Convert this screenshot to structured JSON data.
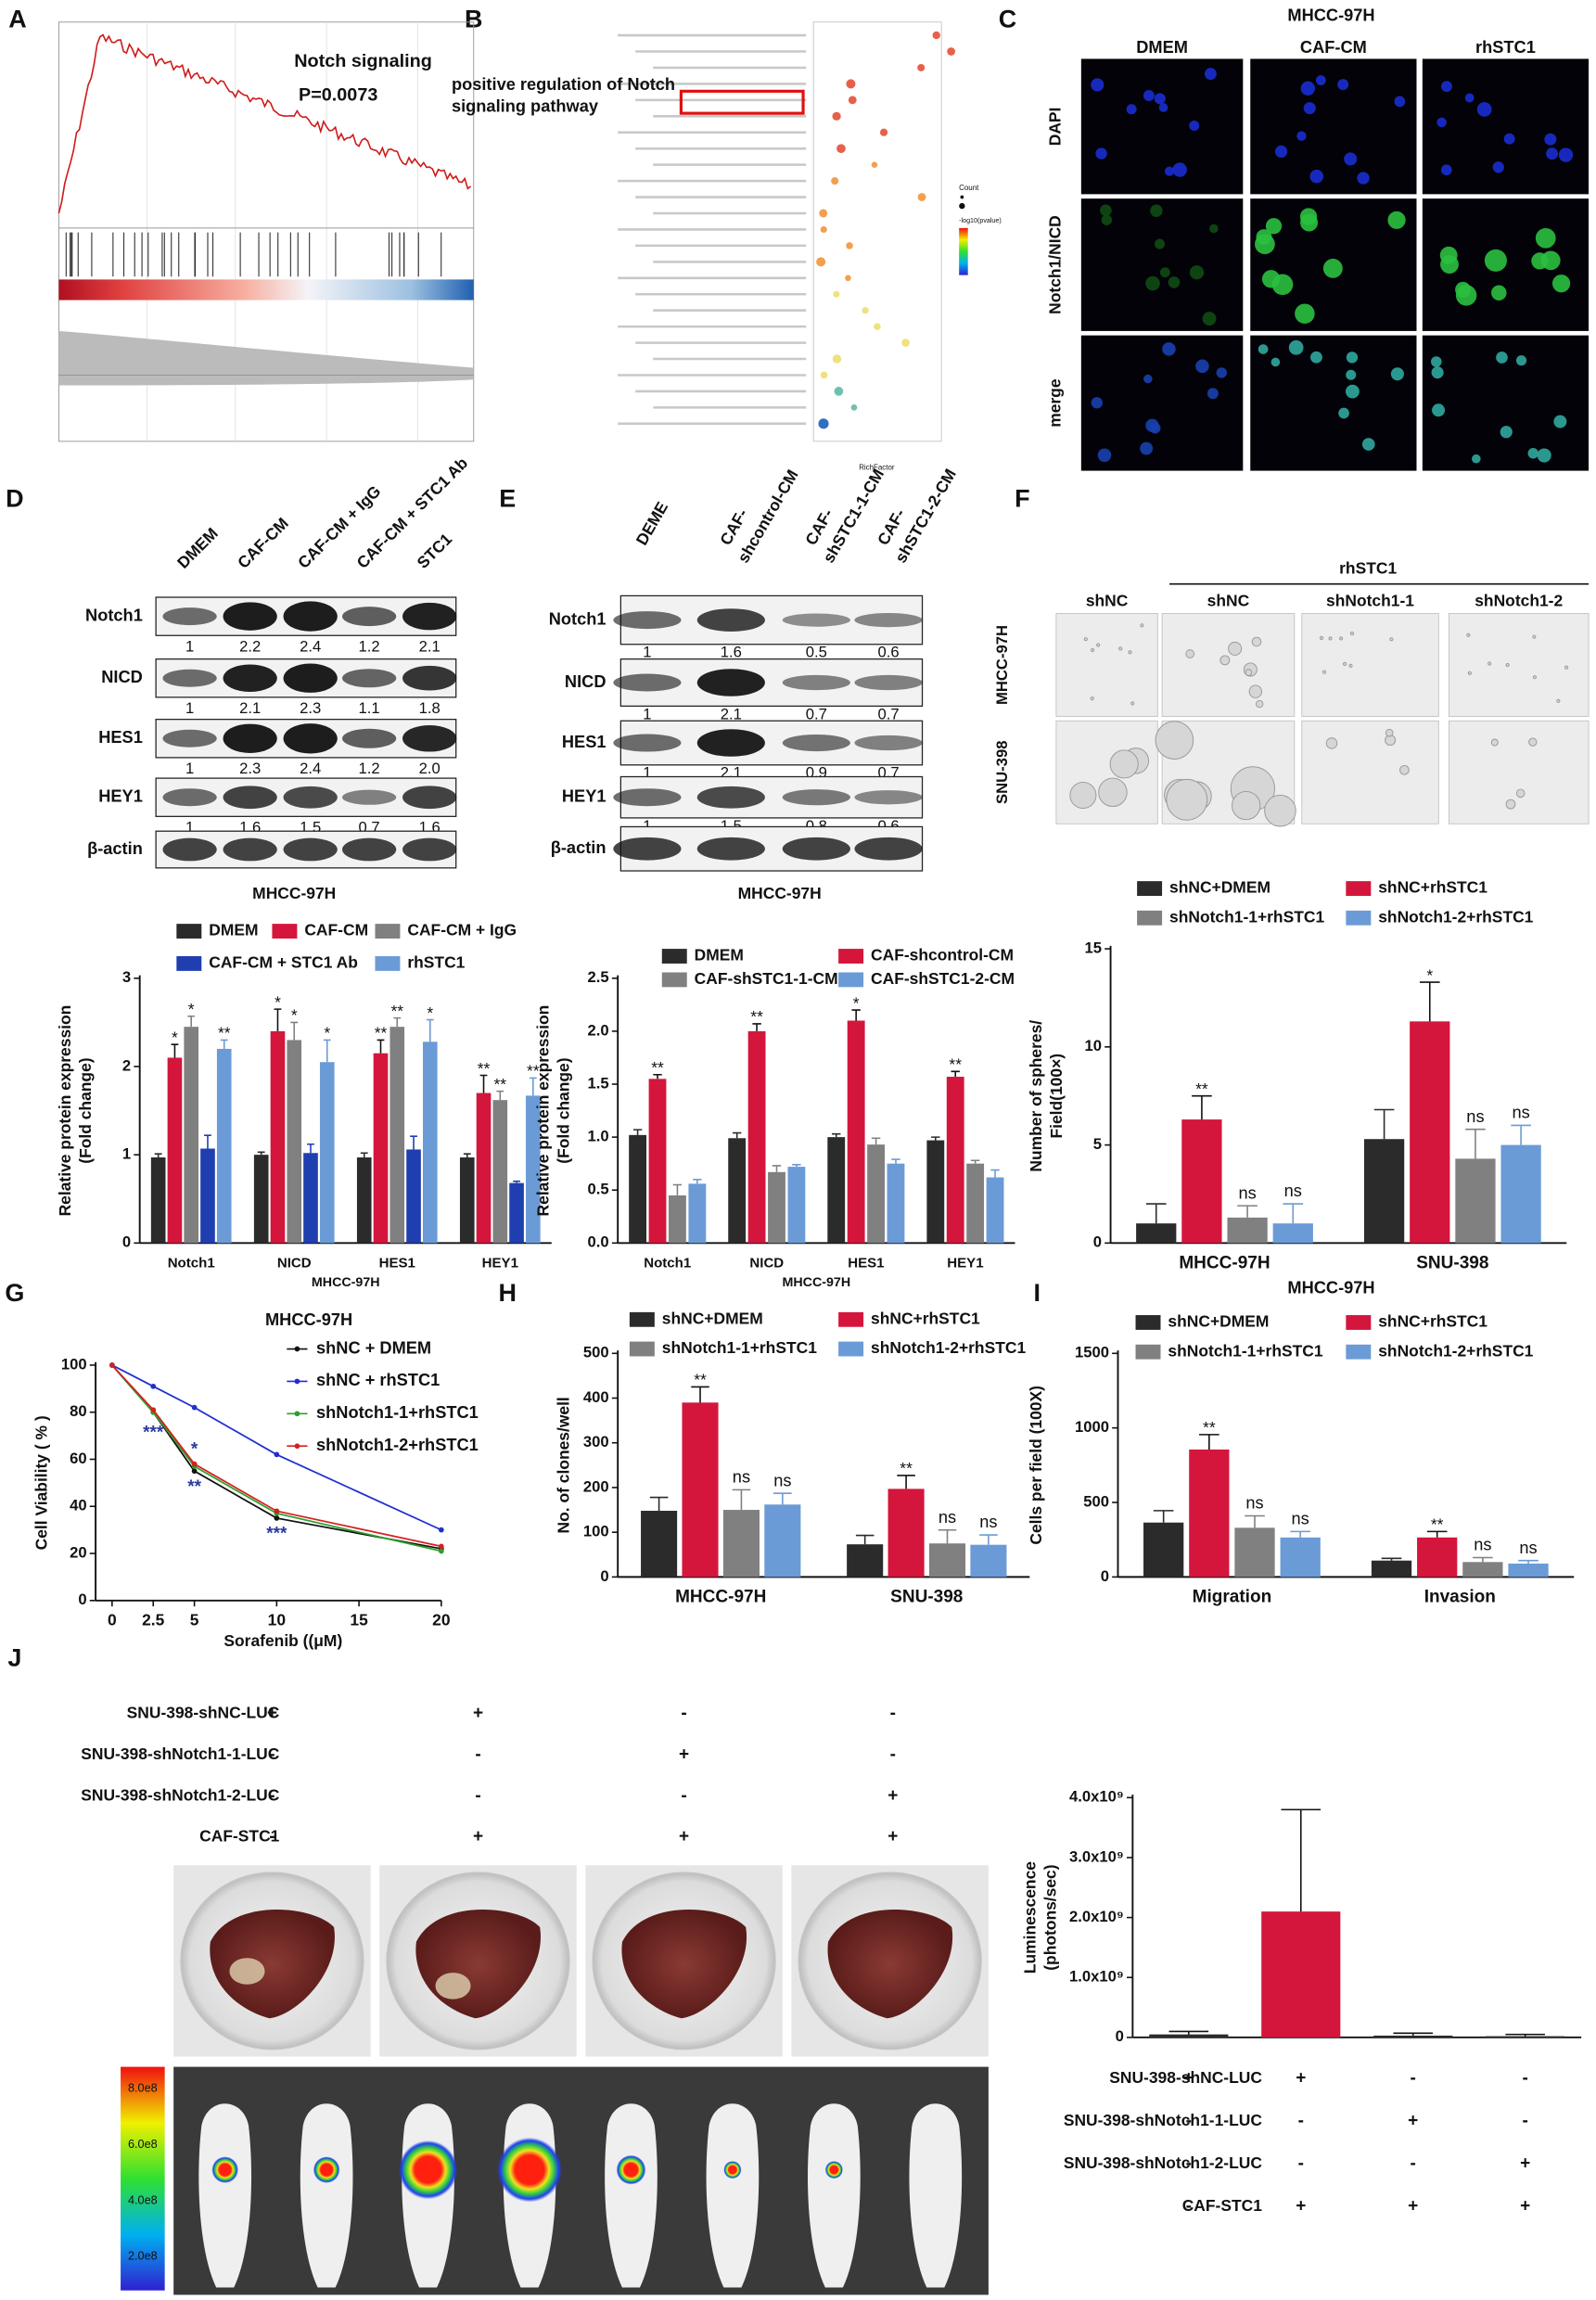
{
  "panel_labels": [
    "A",
    "B",
    "C",
    "D",
    "E",
    "F",
    "G",
    "H",
    "I",
    "J"
  ],
  "panelA": {
    "title": "Notch signaling",
    "pvalue": "P=0.0073"
  },
  "panelB": {
    "highlight": [
      "positive regulation of Notch",
      "signaling pathway"
    ],
    "legend_size": "Count",
    "legend_color": "-log10(pvalue)",
    "xlabel": "RichFactor"
  },
  "panelC": {
    "title": "MHCC-97H",
    "columns": [
      "DMEM",
      "CAF-CM",
      "rhSTC1"
    ],
    "rows": [
      "DAPI",
      "Notch1/NICD",
      "merge"
    ]
  },
  "panelD_blot": {
    "columns": [
      "DMEM",
      "CAF-CM",
      "CAF-CM + IgG",
      "CAF-CM + STC1 Ab",
      "STC1"
    ],
    "rows": [
      {
        "name": "Notch1",
        "values": [
          "1",
          "2.2",
          "2.4",
          "1.2",
          "2.1"
        ]
      },
      {
        "name": "NICD",
        "values": [
          "1",
          "2.1",
          "2.3",
          "1.1",
          "1.8"
        ]
      },
      {
        "name": "HES1",
        "values": [
          "1",
          "2.3",
          "2.4",
          "1.2",
          "2.0"
        ]
      },
      {
        "name": "HEY1",
        "values": [
          "1",
          "1.6",
          "1.5",
          "0.7",
          "1.6"
        ]
      },
      {
        "name": "β-actin"
      }
    ],
    "caption": "MHCC-97H"
  },
  "panelE_blot": {
    "columns": [
      [
        "DEME"
      ],
      [
        "CAF-",
        "shcontrol-CM"
      ],
      [
        "CAF-",
        "shSTC1-1-CM"
      ],
      [
        "CAF-",
        "shSTC1-2-CM"
      ]
    ],
    "rows": [
      {
        "name": "Notch1",
        "values": [
          "1",
          "1.6",
          "0.5",
          "0.6"
        ]
      },
      {
        "name": "NICD",
        "values": [
          "1",
          "2.1",
          "0.7",
          "0.7"
        ]
      },
      {
        "name": "HES1",
        "values": [
          "1",
          "2.1",
          "0.9",
          "0.7"
        ]
      },
      {
        "name": "HEY1",
        "values": [
          "1",
          "1.5",
          "0.8",
          "0.6"
        ]
      },
      {
        "name": "β-actin"
      }
    ],
    "caption": "MHCC-97H"
  },
  "panelF_images": {
    "group": "rhSTC1",
    "columns": [
      "shNC",
      "shNC",
      "shNotch1-1",
      "shNotch1-2"
    ],
    "rows": [
      "MHCC-97H",
      "SNU-398"
    ]
  },
  "panelJ": {
    "conditions": [
      {
        "label": "SNU-398-shNC-LUC",
        "signs": [
          "+",
          "+",
          "-",
          "-"
        ]
      },
      {
        "label": "SNU-398-shNotch1-1-LUC",
        "signs": [
          "-",
          "-",
          "+",
          "-"
        ]
      },
      {
        "label": "SNU-398-shNotch1-2-LUC",
        "signs": [
          "-",
          "-",
          "-",
          "+"
        ]
      },
      {
        "label": "CAF-STC1",
        "signs": [
          "-",
          "+",
          "+",
          "+"
        ]
      }
    ],
    "scale_labels": [
      "8.0e8",
      "6.0e8",
      "4.0e8",
      "2.0e8"
    ]
  },
  "chart_data": [
    {
      "type": "bar",
      "ylabel": [
        "Relative protein expression",
        "(Fold change)"
      ],
      "xlabel": "MHCC-97H",
      "categories": [
        "Notch1",
        "NICD",
        "HES1",
        "HEY1"
      ],
      "ylim": [
        0,
        3
      ],
      "yticks": [
        0,
        1,
        2,
        3
      ],
      "series": [
        {
          "name": "DMEM",
          "color": "#2b2b2b",
          "values": [
            0.97,
            1.0,
            0.97,
            0.97
          ],
          "errors": [
            0.04,
            0.03,
            0.05,
            0.04
          ],
          "significance": [
            null,
            null,
            null,
            null
          ]
        },
        {
          "name": "CAF-CM",
          "color": "#d4163c",
          "values": [
            2.1,
            2.4,
            2.15,
            1.7
          ],
          "errors": [
            0.15,
            0.25,
            0.15,
            0.2
          ],
          "significance": [
            "*",
            "*",
            "**",
            "**"
          ]
        },
        {
          "name": "CAF-CM + IgG",
          "color": "#808080",
          "values": [
            2.45,
            2.3,
            2.45,
            1.62
          ],
          "errors": [
            0.12,
            0.2,
            0.1,
            0.1
          ],
          "significance": [
            "*",
            "*",
            "**",
            "**"
          ]
        },
        {
          "name": "CAF-CM + STC1 Ab",
          "color": "#1f3fb0",
          "values": [
            1.07,
            1.02,
            1.06,
            0.68
          ],
          "errors": [
            0.15,
            0.1,
            0.15,
            0.02
          ],
          "significance": [
            null,
            null,
            null,
            null
          ]
        },
        {
          "name": "rhSTC1",
          "color": "#6b9bd6",
          "values": [
            2.2,
            2.05,
            2.28,
            1.67
          ],
          "errors": [
            0.1,
            0.25,
            0.25,
            0.2
          ],
          "significance": [
            "**",
            "*",
            "*",
            "**"
          ]
        }
      ]
    },
    {
      "type": "bar",
      "ylabel": [
        "Relative protein expression",
        "(Fold change)"
      ],
      "xlabel": "MHCC-97H",
      "categories": [
        "Notch1",
        "NICD",
        "HES1",
        "HEY1"
      ],
      "ylim": [
        0,
        2.5
      ],
      "yticks": [
        {
          "value": 0,
          "label": "0.0"
        },
        {
          "value": 0.5,
          "label": "0.5"
        },
        {
          "value": 1,
          "label": "1.0"
        },
        {
          "value": 1.5,
          "label": "1.5"
        },
        {
          "value": 2,
          "label": "2.0"
        },
        {
          "value": 2.5,
          "label": "2.5"
        }
      ],
      "series": [
        {
          "name": "DMEM",
          "color": "#2b2b2b",
          "values": [
            1.02,
            0.99,
            1.0,
            0.97
          ],
          "errors": [
            0.05,
            0.05,
            0.03,
            0.03
          ],
          "significance": [
            null,
            null,
            null,
            null
          ]
        },
        {
          "name": "CAF-shcontrol-CM",
          "color": "#d4163c",
          "values": [
            1.55,
            2.0,
            2.1,
            1.57
          ],
          "errors": [
            0.04,
            0.07,
            0.1,
            0.05
          ],
          "significance": [
            "**",
            "**",
            "*",
            "**"
          ]
        },
        {
          "name": "CAF-shSTC1-1-CM",
          "color": "#808080",
          "values": [
            0.45,
            0.67,
            0.93,
            0.75
          ],
          "errors": [
            0.1,
            0.06,
            0.06,
            0.03
          ],
          "significance": [
            null,
            null,
            null,
            null
          ]
        },
        {
          "name": "CAF-shSTC1-2-CM",
          "color": "#6b9bd6",
          "values": [
            0.56,
            0.72,
            0.75,
            0.62
          ],
          "errors": [
            0.04,
            0.02,
            0.04,
            0.07
          ],
          "significance": [
            null,
            null,
            null,
            null
          ]
        }
      ]
    },
    {
      "type": "bar",
      "ylabel": [
        "Number of spheres/",
        "Field(100×)"
      ],
      "categories": [
        "MHCC-97H",
        "SNU-398"
      ],
      "ylim": [
        0,
        15
      ],
      "yticks": [
        0,
        5,
        10,
        15
      ],
      "series": [
        {
          "name": "shNC+DMEM",
          "color": "#2b2b2b",
          "values": [
            1.0,
            5.3
          ],
          "errors": [
            1.0,
            1.5
          ],
          "significance": [
            null,
            null
          ]
        },
        {
          "name": "shNC+rhSTC1",
          "color": "#d4163c",
          "values": [
            6.3,
            11.3
          ],
          "errors": [
            1.2,
            2.0
          ],
          "significance": [
            "**",
            "*"
          ]
        },
        {
          "name": "shNotch1-1+rhSTC1",
          "color": "#808080",
          "values": [
            1.3,
            4.3
          ],
          "errors": [
            0.6,
            1.5
          ],
          "significance": [
            "ns",
            "ns"
          ]
        },
        {
          "name": "shNotch1-2+rhSTC1",
          "color": "#6b9bd6",
          "values": [
            1.0,
            5.0
          ],
          "errors": [
            1.0,
            1.0
          ],
          "significance": [
            "ns",
            "ns"
          ]
        }
      ]
    },
    {
      "type": "line",
      "title": "MHCC-97H",
      "ylabel": "Cell Viability ( % )",
      "xlabel": "Sorafenib ((μM)",
      "x": [
        0,
        2.5,
        5,
        10,
        20
      ],
      "xlim": [
        -1,
        20
      ],
      "xticks": [
        0,
        2.5,
        5,
        10,
        15,
        20
      ],
      "ylim": [
        0,
        100
      ],
      "yticks": [
        0,
        20,
        40,
        60,
        80,
        100
      ],
      "series": [
        {
          "name": "shNC + DMEM",
          "color": "#111111",
          "values": [
            100,
            80,
            55,
            35,
            22
          ]
        },
        {
          "name": "shNC + rhSTC1",
          "color": "#1f2fd0",
          "values": [
            100,
            91,
            82,
            62,
            30
          ]
        },
        {
          "name": "shNotch1-1+rhSTC1",
          "color": "#2aa02a",
          "values": [
            100,
            80,
            57,
            37,
            21
          ]
        },
        {
          "name": "shNotch1-2+rhSTC1",
          "color": "#d42020",
          "values": [
            100,
            81,
            58,
            38,
            23
          ]
        }
      ],
      "annotations": [
        {
          "text": "***",
          "x": 2.5,
          "y": 71
        },
        {
          "text": "*",
          "x": 5,
          "y": 64
        },
        {
          "text": "**",
          "x": 5,
          "y": 48
        },
        {
          "text": "***",
          "x": 10,
          "y": 28
        }
      ]
    },
    {
      "type": "bar",
      "ylabel": "No. of clones/well",
      "categories": [
        "MHCC-97H",
        "SNU-398"
      ],
      "ylim": [
        0,
        500
      ],
      "yticks": [
        0,
        100,
        200,
        300,
        400,
        500
      ],
      "series": [
        {
          "name": "shNC+DMEM",
          "color": "#2b2b2b",
          "values": [
            148,
            73
          ],
          "errors": [
            30,
            20
          ],
          "significance": [
            null,
            null
          ]
        },
        {
          "name": "shNC+rhSTC1",
          "color": "#d4163c",
          "values": [
            390,
            197
          ],
          "errors": [
            35,
            30
          ],
          "significance": [
            "**",
            "**"
          ]
        },
        {
          "name": "shNotch1-1+rhSTC1",
          "color": "#808080",
          "values": [
            150,
            75
          ],
          "errors": [
            45,
            30
          ],
          "significance": [
            "ns",
            "ns"
          ]
        },
        {
          "name": "shNotch1-2+rhSTC1",
          "color": "#6b9bd6",
          "values": [
            162,
            72
          ],
          "errors": [
            25,
            22
          ],
          "significance": [
            "ns",
            "ns"
          ]
        }
      ]
    },
    {
      "type": "bar",
      "title": "MHCC-97H",
      "ylabel": "Cells per field (100X)",
      "categories": [
        "Migration",
        "Invasion"
      ],
      "ylim": [
        0,
        1500
      ],
      "yticks": [
        0,
        500,
        1000,
        1500
      ],
      "series": [
        {
          "name": "shNC+DMEM",
          "color": "#2b2b2b",
          "values": [
            365,
            110
          ],
          "errors": [
            80,
            15
          ],
          "significance": [
            null,
            null
          ]
        },
        {
          "name": "shNC+rhSTC1",
          "color": "#d4163c",
          "values": [
            855,
            265
          ],
          "errors": [
            100,
            40
          ],
          "significance": [
            "**",
            "**"
          ]
        },
        {
          "name": "shNotch1-1+rhSTC1",
          "color": "#808080",
          "values": [
            330,
            100
          ],
          "errors": [
            80,
            30
          ],
          "significance": [
            "ns",
            "ns"
          ]
        },
        {
          "name": "shNotch1-2+rhSTC1",
          "color": "#6b9bd6",
          "values": [
            265,
            90
          ],
          "errors": [
            40,
            20
          ],
          "significance": [
            "ns",
            "ns"
          ]
        }
      ]
    },
    {
      "type": "bar",
      "ylabel": [
        "Luminescence",
        "(photons/sec)"
      ],
      "ylim": [
        0,
        4000000000
      ],
      "yticks": [
        0,
        {
          "value": 1000000000,
          "label": "1.0x10⁹"
        },
        {
          "value": 2000000000,
          "label": "2.0x10⁹"
        },
        {
          "value": 3000000000,
          "label": "3.0x10⁹"
        },
        {
          "value": 4000000000,
          "label": "4.0x10⁹"
        }
      ],
      "series": [
        {
          "colors": [
            "#2b2b2b",
            "#d4163c",
            "#2b2b2b",
            "#2b2b2b"
          ],
          "values": [
            50000000,
            2100000000,
            30000000,
            20000000
          ],
          "errors": [
            50000000,
            1700000000,
            40000000,
            30000000
          ]
        }
      ],
      "conditions": [
        {
          "label": "SNU-398-shNC-LUC",
          "signs": [
            "+",
            "+",
            "-",
            "-"
          ]
        },
        {
          "label": "SNU-398-shNotch1-1-LUC",
          "signs": [
            "-",
            "-",
            "+",
            "-"
          ]
        },
        {
          "label": "SNU-398-shNotch1-2-LUC",
          "signs": [
            "-",
            "-",
            "-",
            "+"
          ]
        },
        {
          "label": "CAF-STC1",
          "signs": [
            "-",
            "+",
            "+",
            "+"
          ]
        }
      ]
    }
  ]
}
